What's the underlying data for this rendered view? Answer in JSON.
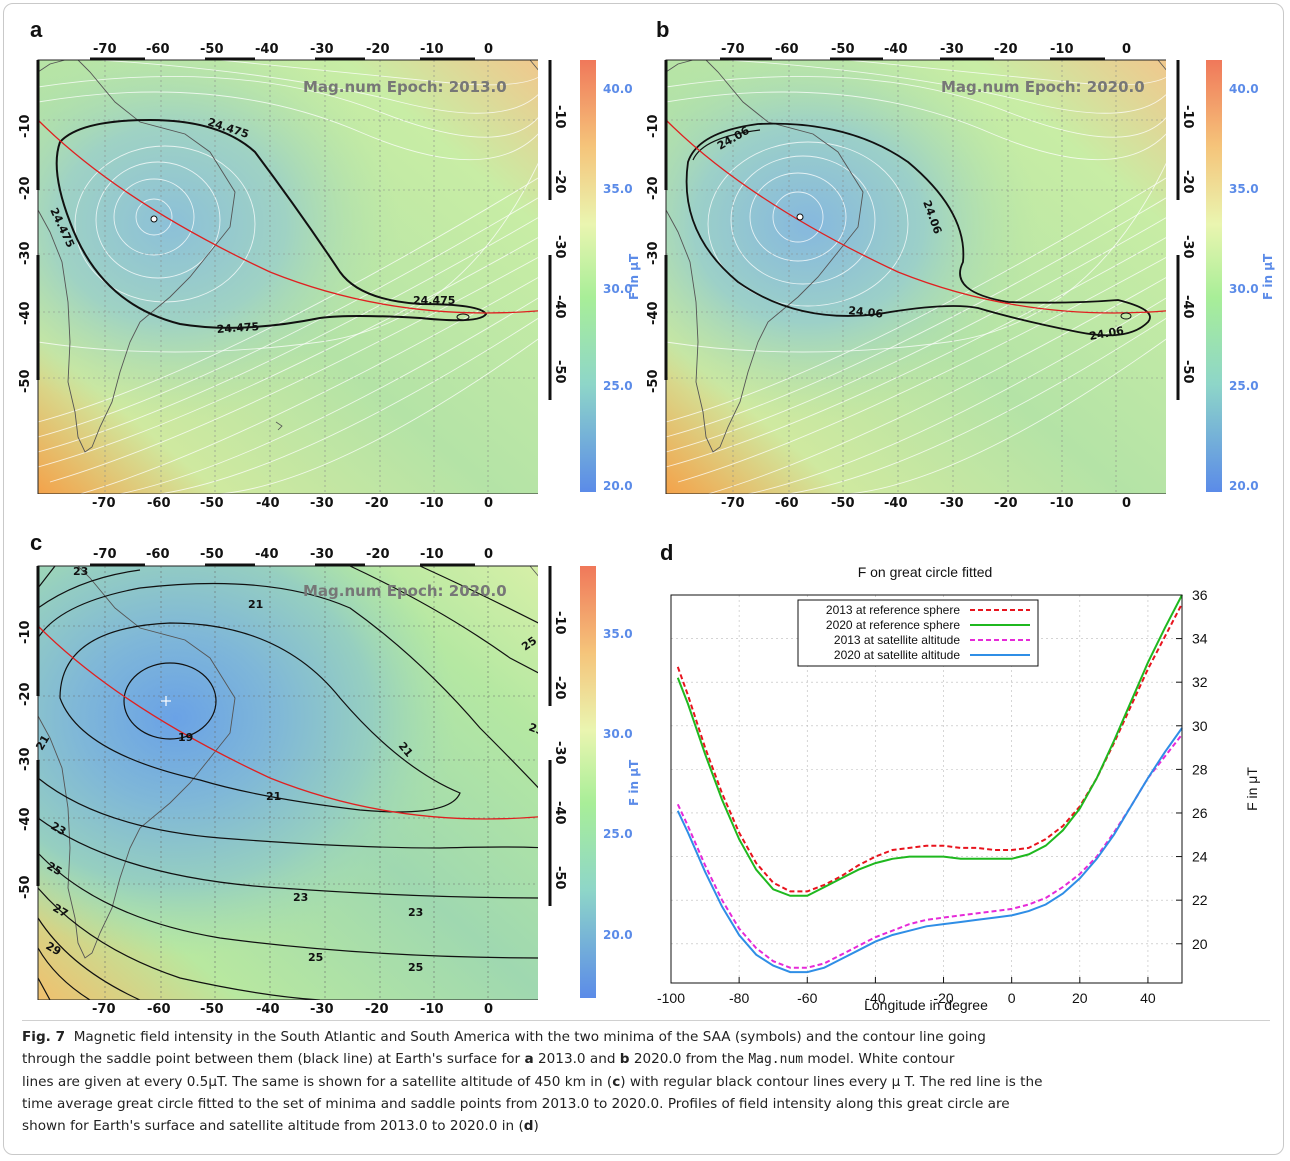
{
  "figure": {
    "panel_labels": [
      "a",
      "b",
      "c",
      "d"
    ],
    "caption": {
      "fig_number": "Fig. 7",
      "line1_pre": "Magnetic field intensity in the South Atlantic and South America with the two  minima of the  SAA (symbols)  and the contour  line going",
      "line2_pre": "through the  saddle point  between them  (black line)  at  Earth's surface for ",
      "bold_a": "a",
      "line2_mid1": " 2013.0  and ",
      "bold_b": "b",
      "line2_mid2": " 2020.0  from the ",
      "model_name": "Mag.num",
      "line2_post": " model. White contour",
      "line3": "lines are given at every 0.5μT. The same is shown for a satellite altitude  of 450 km in (",
      "bold_c": "c",
      "line3_post": ") with regular black contour lines every μ T.  The red line is the",
      "line4": "time average great circle fitted to the set  of minima and saddle points from 2013.0 to 2020.0.  Profiles of  field intensity along this great circle are",
      "line5_pre": "shown for Earth's surface and satellite altitude from 2013.0 to 2020.0 in (",
      "bold_d": "d",
      "line5_post": ")"
    }
  },
  "maps": {
    "lon_ticks": [
      "-70",
      "-60",
      "-50",
      "-40",
      "-30",
      "-20",
      "-10",
      "0"
    ],
    "lat_ticks": [
      "-10",
      "-20",
      "-30",
      "-40",
      "-50"
    ],
    "colorbar_label": "F in μT",
    "panel_a": {
      "epoch": "Mag.num Epoch: 2013.0",
      "saddle_labels": [
        "24.475",
        "24.475",
        "24.475",
        "24.475"
      ],
      "colorbar_ticks": [
        "40.0",
        "35.0",
        "30.0",
        "25.0",
        "20.0"
      ]
    },
    "panel_b": {
      "epoch": "Mag.num Epoch: 2020.0",
      "saddle_labels": [
        "24.06",
        "24.06",
        "24.06",
        "24.06"
      ],
      "colorbar_ticks": [
        "40.0",
        "35.0",
        "30.0",
        "25.0",
        "20.0"
      ]
    },
    "panel_c": {
      "epoch": "Mag.num Epoch: 2020.0",
      "contour_labels": [
        "23",
        "21",
        "25",
        "23",
        "19",
        "21",
        "21",
        "21",
        "23",
        "25",
        "23",
        "23",
        "27",
        "29",
        "25",
        "25"
      ],
      "colorbar_ticks": [
        "35.0",
        "30.0",
        "25.0",
        "20.0"
      ]
    }
  },
  "chart_data": {
    "type": "line",
    "title": "F on great circle fitted",
    "xlabel": "Longitude in degree",
    "ylabel": "F in μT",
    "xlim": [
      -100,
      50
    ],
    "ylim": [
      18.2,
      36
    ],
    "xticks": [
      -100,
      -80,
      -60,
      -40,
      -20,
      0,
      20,
      40
    ],
    "yticks": [
      20,
      22,
      24,
      26,
      28,
      30,
      32,
      34,
      36
    ],
    "grid": true,
    "legend_position": "top-center",
    "x": [
      -98,
      -95,
      -90,
      -85,
      -80,
      -75,
      -70,
      -65,
      -60,
      -55,
      -50,
      -45,
      -40,
      -35,
      -30,
      -25,
      -20,
      -15,
      -10,
      -5,
      0,
      5,
      10,
      15,
      20,
      25,
      30,
      35,
      40,
      45,
      50
    ],
    "series": [
      {
        "name": "2013 at reference sphere",
        "color": "#e8141e",
        "dash": "dashed",
        "values": [
          32.7,
          31.4,
          29.0,
          26.9,
          25.1,
          23.7,
          22.8,
          22.4,
          22.4,
          22.7,
          23.1,
          23.6,
          24.0,
          24.3,
          24.4,
          24.5,
          24.5,
          24.4,
          24.4,
          24.3,
          24.3,
          24.4,
          24.8,
          25.4,
          26.3,
          27.6,
          29.2,
          30.9,
          32.6,
          34.1,
          35.6
        ]
      },
      {
        "name": "2020 at reference sphere",
        "color": "#1fb81f",
        "dash": "solid",
        "values": [
          32.2,
          31.0,
          28.7,
          26.6,
          24.8,
          23.4,
          22.5,
          22.2,
          22.2,
          22.6,
          23.0,
          23.4,
          23.7,
          23.9,
          24.0,
          24.0,
          24.0,
          23.9,
          23.9,
          23.9,
          23.9,
          24.1,
          24.5,
          25.2,
          26.2,
          27.6,
          29.3,
          31.1,
          32.9,
          34.5,
          36.0
        ]
      },
      {
        "name": "2013 at satellite altitude",
        "color": "#e62ad8",
        "dash": "dashed",
        "values": [
          26.4,
          25.4,
          23.6,
          22.0,
          20.7,
          19.8,
          19.2,
          18.9,
          18.9,
          19.1,
          19.5,
          19.9,
          20.3,
          20.6,
          20.9,
          21.1,
          21.2,
          21.3,
          21.4,
          21.5,
          21.6,
          21.8,
          22.1,
          22.6,
          23.2,
          24.0,
          25.1,
          26.3,
          27.6,
          28.6,
          29.6
        ]
      },
      {
        "name": "2020 at satellite altitude",
        "color": "#2f8ee6",
        "dash": "solid",
        "values": [
          26.1,
          25.1,
          23.3,
          21.7,
          20.4,
          19.5,
          19.0,
          18.7,
          18.7,
          18.9,
          19.3,
          19.7,
          20.1,
          20.4,
          20.6,
          20.8,
          20.9,
          21.0,
          21.1,
          21.2,
          21.3,
          21.5,
          21.8,
          22.3,
          23.0,
          23.9,
          25.0,
          26.3,
          27.6,
          28.8,
          29.9
        ]
      }
    ]
  }
}
